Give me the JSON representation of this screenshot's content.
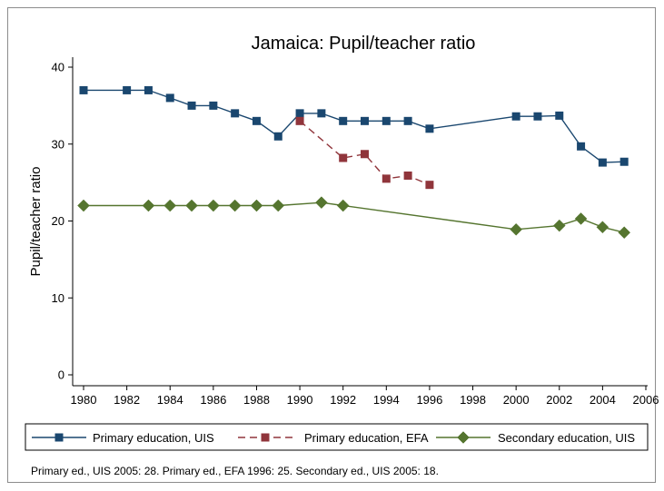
{
  "chart_data": {
    "type": "line",
    "title": "Jamaica: Pupil/teacher ratio",
    "xlabel": "",
    "ylabel": "Pupil/teacher ratio",
    "xlim": [
      1980,
      2006
    ],
    "ylim": [
      0,
      40
    ],
    "x_ticks": [
      1980,
      1982,
      1984,
      1986,
      1988,
      1990,
      1992,
      1994,
      1996,
      1998,
      2000,
      2002,
      2004,
      2006
    ],
    "y_ticks": [
      0,
      10,
      20,
      30,
      40
    ],
    "grid": false,
    "legend_position": "bottom",
    "series": [
      {
        "name": "Primary education, UIS",
        "color": "#1a476f",
        "marker": "square",
        "line": "solid",
        "x": [
          1980,
          1982,
          1983,
          1984,
          1985,
          1986,
          1987,
          1988,
          1989,
          1990,
          1991,
          1992,
          1993,
          1994,
          1995,
          1996,
          2000,
          2001,
          2002,
          2003,
          2004,
          2005
        ],
        "y": [
          37,
          37,
          37,
          36,
          35,
          35,
          34,
          33,
          31,
          34,
          34,
          33,
          33,
          33,
          33,
          32,
          33.6,
          33.6,
          33.7,
          29.7,
          27.6,
          27.7
        ]
      },
      {
        "name": "Primary education, EFA",
        "color": "#90353b",
        "marker": "square",
        "line": "dashed",
        "x": [
          1990,
          1992,
          1993,
          1994,
          1995,
          1996
        ],
        "y": [
          33,
          28.2,
          28.7,
          25.5,
          25.9,
          24.7
        ]
      },
      {
        "name": "Secondary education, UIS",
        "color": "#55752f",
        "marker": "diamond",
        "line": "solid",
        "x": [
          1980,
          1983,
          1984,
          1985,
          1986,
          1987,
          1988,
          1989,
          1991,
          1992,
          2000,
          2002,
          2003,
          2004,
          2005
        ],
        "y": [
          22,
          22,
          22,
          22,
          22,
          22,
          22,
          22,
          22.4,
          22,
          18.9,
          19.4,
          20.3,
          19.2,
          18.5
        ]
      }
    ],
    "footnote": "Primary ed., UIS 2005: 28. Primary ed., EFA 1996: 25. Secondary ed., UIS 2005: 18."
  }
}
